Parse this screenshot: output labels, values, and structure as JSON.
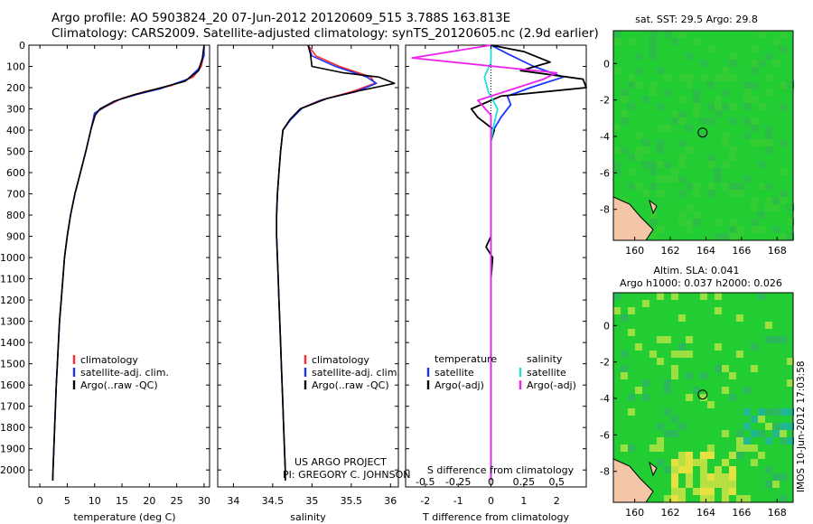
{
  "header": {
    "title_line1": "Argo profile: AO 5903824_20 07-Jun-2012 20120609_515 3.788S 163.813E",
    "title_line2": "Climatology: CARS2009. Satellite-adjusted climatology: synTS_20120605.nc (2.9d earlier)"
  },
  "credit": {
    "line1": "US ARGO PROJECT",
    "line2": "PI: GREGORY C. JOHNSON"
  },
  "timestamp": "IMOS 10-Jun-2012 17:03:58",
  "colors": {
    "climatology": "#ff2a2a",
    "satellite": "#1a33ff",
    "argo": "#000000",
    "sat_salinity": "#22dddd",
    "argo_salinity": "#ee22ee"
  },
  "chart_data": [
    {
      "type": "line",
      "id": "temperature",
      "xlabel": "temperature (deg C)",
      "ylabel": "",
      "xlim": [
        -2,
        31
      ],
      "ylim": [
        2080,
        0
      ],
      "xticks": [
        0,
        5,
        10,
        15,
        20,
        25,
        30
      ],
      "yticks": [
        0,
        100,
        200,
        300,
        400,
        500,
        600,
        700,
        800,
        900,
        1000,
        1100,
        1200,
        1300,
        1400,
        1500,
        1600,
        1700,
        1800,
        1900,
        2000
      ],
      "legend": [
        "climatology",
        "satellite-adj. clim.",
        "Argo(..raw -QC)"
      ],
      "series": [
        {
          "name": "climatology",
          "color": "#ff2a2a",
          "points": [
            [
              30,
              0
            ],
            [
              29.9,
              50
            ],
            [
              29.5,
              100
            ],
            [
              28,
              150
            ],
            [
              24,
              190
            ],
            [
              19,
              220
            ],
            [
              15,
              250
            ],
            [
              12,
              290
            ],
            [
              10,
              320
            ],
            [
              9.3,
              400
            ],
            [
              8.4,
              500
            ],
            [
              7.4,
              600
            ],
            [
              6.4,
              700
            ],
            [
              5.6,
              800
            ],
            [
              5,
              900
            ],
            [
              4.5,
              1000
            ],
            [
              4.2,
              1100
            ],
            [
              3.9,
              1200
            ],
            [
              3.6,
              1300
            ],
            [
              3.4,
              1400
            ],
            [
              3.2,
              1500
            ],
            [
              3,
              1600
            ],
            [
              2.85,
              1700
            ],
            [
              2.7,
              1800
            ],
            [
              2.55,
              1900
            ],
            [
              2.4,
              2000
            ],
            [
              2.35,
              2050
            ]
          ]
        },
        {
          "name": "satellite-adj. clim.",
          "color": "#1a33ff",
          "points": [
            [
              30,
              0
            ],
            [
              30,
              50
            ],
            [
              29,
              110
            ],
            [
              27,
              160
            ],
            [
              22,
              205
            ],
            [
              18,
              230
            ],
            [
              14,
              260
            ],
            [
              11.5,
              295
            ],
            [
              10,
              320
            ],
            [
              9.3,
              400
            ],
            [
              8.4,
              500
            ],
            [
              7.4,
              600
            ],
            [
              6.4,
              700
            ],
            [
              5.6,
              800
            ],
            [
              5,
              900
            ],
            [
              4.5,
              1000
            ],
            [
              4.2,
              1100
            ],
            [
              3.9,
              1200
            ],
            [
              3.6,
              1300
            ],
            [
              3.4,
              1400
            ],
            [
              3.2,
              1500
            ],
            [
              3,
              1600
            ],
            [
              2.85,
              1700
            ],
            [
              2.7,
              1800
            ],
            [
              2.55,
              1900
            ],
            [
              2.4,
              2000
            ],
            [
              2.35,
              2050
            ]
          ]
        },
        {
          "name": "Argo(..raw -QC)",
          "color": "#000000",
          "points": [
            [
              30,
              0
            ],
            [
              29.7,
              60
            ],
            [
              29,
              120
            ],
            [
              26.5,
              170
            ],
            [
              21.5,
              205
            ],
            [
              17,
              235
            ],
            [
              13.5,
              265
            ],
            [
              11,
              300
            ],
            [
              10.1,
              330
            ],
            [
              9.3,
              400
            ],
            [
              8.4,
              500
            ],
            [
              7.4,
              600
            ],
            [
              6.4,
              700
            ],
            [
              5.6,
              800
            ],
            [
              5,
              900
            ],
            [
              4.5,
              1000
            ],
            [
              4.2,
              1100
            ],
            [
              3.9,
              1200
            ],
            [
              3.6,
              1300
            ],
            [
              3.4,
              1400
            ],
            [
              3.2,
              1500
            ],
            [
              3,
              1600
            ],
            [
              2.85,
              1700
            ],
            [
              2.7,
              1800
            ],
            [
              2.55,
              1900
            ],
            [
              2.4,
              2000
            ],
            [
              2.35,
              2050
            ]
          ]
        }
      ]
    },
    {
      "type": "line",
      "id": "salinity",
      "xlabel": "salinity",
      "ylabel": "",
      "xlim": [
        33.8,
        36.1
      ],
      "ylim": [
        2080,
        0
      ],
      "xticks": [
        34,
        34.5,
        35,
        35.5,
        36
      ],
      "legend": [
        "climatology",
        "satellite-adj. clim.",
        "Argo(..raw -QC)"
      ],
      "series": [
        {
          "name": "climatology",
          "color": "#ff2a2a",
          "points": [
            [
              34.95,
              0
            ],
            [
              35.05,
              50
            ],
            [
              35.35,
              100
            ],
            [
              35.75,
              150
            ],
            [
              35.8,
              180
            ],
            [
              35.5,
              220
            ],
            [
              35.1,
              260
            ],
            [
              34.85,
              300
            ],
            [
              34.72,
              350
            ],
            [
              34.63,
              400
            ],
            [
              34.6,
              500
            ],
            [
              34.58,
              600
            ],
            [
              34.56,
              700
            ],
            [
              34.55,
              800
            ],
            [
              34.55,
              900
            ],
            [
              34.56,
              1000
            ],
            [
              34.57,
              1100
            ],
            [
              34.58,
              1200
            ],
            [
              34.59,
              1300
            ],
            [
              34.6,
              1400
            ],
            [
              34.61,
              1500
            ],
            [
              34.62,
              1600
            ],
            [
              34.63,
              1700
            ],
            [
              34.64,
              1800
            ],
            [
              34.65,
              1900
            ],
            [
              34.66,
              2000
            ],
            [
              34.66,
              2050
            ]
          ]
        },
        {
          "name": "satellite-adj. clim.",
          "color": "#1a33ff",
          "points": [
            [
              34.95,
              0
            ],
            [
              35,
              50
            ],
            [
              35.3,
              100
            ],
            [
              35.7,
              150
            ],
            [
              35.82,
              180
            ],
            [
              35.55,
              220
            ],
            [
              35.15,
              255
            ],
            [
              34.88,
              295
            ],
            [
              34.73,
              350
            ],
            [
              34.63,
              400
            ],
            [
              34.6,
              500
            ],
            [
              34.58,
              600
            ],
            [
              34.56,
              700
            ],
            [
              34.55,
              800
            ],
            [
              34.55,
              900
            ],
            [
              34.56,
              1000
            ],
            [
              34.57,
              1100
            ],
            [
              34.58,
              1200
            ],
            [
              34.59,
              1300
            ],
            [
              34.6,
              1400
            ],
            [
              34.61,
              1500
            ],
            [
              34.62,
              1600
            ],
            [
              34.63,
              1700
            ],
            [
              34.64,
              1800
            ],
            [
              34.65,
              1900
            ],
            [
              34.66,
              2000
            ],
            [
              34.66,
              2050
            ]
          ]
        },
        {
          "name": "Argo(..raw -QC)",
          "color": "#000000",
          "points": [
            [
              34.95,
              0
            ],
            [
              34.98,
              40
            ],
            [
              35,
              100
            ],
            [
              35.4,
              130
            ],
            [
              35.85,
              150
            ],
            [
              36.05,
              180
            ],
            [
              35.6,
              215
            ],
            [
              35.2,
              250
            ],
            [
              34.85,
              300
            ],
            [
              34.72,
              350
            ],
            [
              34.63,
              400
            ],
            [
              34.6,
              500
            ],
            [
              34.58,
              600
            ],
            [
              34.56,
              700
            ],
            [
              34.55,
              800
            ],
            [
              34.55,
              900
            ],
            [
              34.56,
              1000
            ],
            [
              34.57,
              1100
            ],
            [
              34.58,
              1200
            ],
            [
              34.59,
              1300
            ],
            [
              34.6,
              1400
            ],
            [
              34.61,
              1500
            ],
            [
              34.62,
              1600
            ],
            [
              34.63,
              1700
            ],
            [
              34.64,
              1800
            ],
            [
              34.65,
              1900
            ],
            [
              34.66,
              2000
            ],
            [
              34.66,
              2050
            ]
          ]
        }
      ]
    },
    {
      "type": "line",
      "id": "difference",
      "xlabel": "T difference from climatology",
      "xlabel_top": "S difference from climatology",
      "xlim_T": [
        -2.6,
        2.9
      ],
      "xticks_T": [
        -2,
        -1,
        0,
        1,
        2
      ],
      "xlim_S": [
        -0.65,
        0.725
      ],
      "xticks_S": [
        -0.5,
        -0.25,
        0,
        0.25,
        0.5
      ],
      "xticklabels_S": [
        "-0.5",
        "-0.25",
        "0",
        "0.25",
        "0.5"
      ],
      "ylim": [
        2080,
        0
      ],
      "legend_left": {
        "title": "temperature",
        "items": [
          "satellite",
          "Argo(-adj)"
        ]
      },
      "legend_right": {
        "title": "salinity",
        "items": [
          "satellite",
          "Argo(-adj)"
        ]
      },
      "series": [
        {
          "name": "satellite",
          "group": "temperature",
          "color": "#1a33ff",
          "points": [
            [
              0,
              0
            ],
            [
              0.5,
              40
            ],
            [
              1.3,
              100
            ],
            [
              2.2,
              150
            ],
            [
              1.2,
              200
            ],
            [
              0.5,
              240
            ],
            [
              0.6,
              280
            ],
            [
              0.3,
              340
            ],
            [
              0,
              420
            ],
            [
              0,
              2050
            ]
          ]
        },
        {
          "name": "Argo(-adj)",
          "group": "temperature",
          "color": "#000000",
          "points": [
            [
              0,
              0
            ],
            [
              1,
              30
            ],
            [
              1.8,
              80
            ],
            [
              0.9,
              120
            ],
            [
              2.8,
              160
            ],
            [
              2.9,
              200
            ],
            [
              0.3,
              240
            ],
            [
              -0.6,
              300
            ],
            [
              -0.4,
              340
            ],
            [
              0.1,
              400
            ],
            [
              0,
              450
            ],
            [
              0,
              900
            ],
            [
              -0.15,
              950
            ],
            [
              0.05,
              1000
            ],
            [
              0,
              1100
            ],
            [
              0,
              2050
            ]
          ]
        },
        {
          "name": "satellite",
          "group": "salinity",
          "color": "#22dddd",
          "points": [
            [
              0,
              0
            ],
            [
              0,
              80
            ],
            [
              -0.05,
              150
            ],
            [
              -0.02,
              220
            ],
            [
              0.05,
              300
            ],
            [
              0.02,
              380
            ],
            [
              0,
              450
            ],
            [
              0,
              2050
            ]
          ]
        },
        {
          "name": "Argo(-adj)",
          "group": "salinity",
          "color": "#ee22ee",
          "points": [
            [
              0,
              0
            ],
            [
              -0.6,
              60
            ],
            [
              0.5,
              130
            ],
            [
              0.4,
              160
            ],
            [
              0.2,
              200
            ],
            [
              -0.1,
              260
            ],
            [
              0,
              330
            ],
            [
              0,
              2050
            ]
          ]
        }
      ]
    },
    {
      "type": "heatmap",
      "id": "sst_map",
      "title": "sat. SST: 29.5 Argo: 29.8",
      "xticks": [
        160,
        162,
        164,
        166,
        168
      ],
      "yticks": [
        0,
        -2,
        -4,
        -6,
        -8
      ],
      "xlim": [
        158.8,
        168.9
      ],
      "ylim": [
        -9.7,
        1.8
      ],
      "marker": [
        163.813,
        -3.788
      ]
    },
    {
      "type": "heatmap",
      "id": "sla_map",
      "title": "Altim. SLA: 0.041",
      "subtitle": "Argo h1000: 0.037 h2000: 0.026",
      "xticks": [
        160,
        162,
        164,
        166,
        168
      ],
      "yticks": [
        0,
        -2,
        -4,
        -6,
        -8
      ],
      "xlim": [
        158.8,
        168.9
      ],
      "ylim": [
        -9.7,
        1.8
      ],
      "marker": [
        163.813,
        -3.788
      ]
    }
  ]
}
